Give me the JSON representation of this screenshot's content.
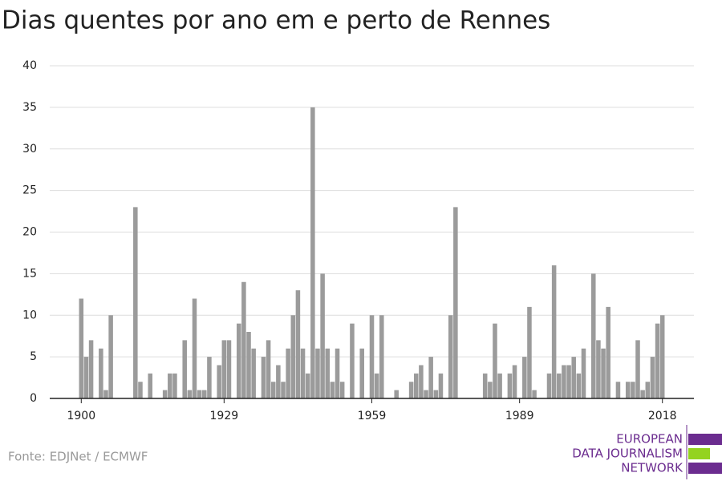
{
  "chart_data": {
    "type": "bar",
    "title": "Dias quentes por ano em e perto de Rennes",
    "x": [
      1900,
      1901,
      1902,
      1903,
      1904,
      1905,
      1906,
      1907,
      1908,
      1909,
      1910,
      1911,
      1912,
      1913,
      1914,
      1915,
      1916,
      1917,
      1918,
      1919,
      1920,
      1921,
      1922,
      1923,
      1924,
      1925,
      1926,
      1927,
      1928,
      1929,
      1930,
      1931,
      1932,
      1933,
      1934,
      1935,
      1936,
      1937,
      1938,
      1939,
      1940,
      1941,
      1942,
      1943,
      1944,
      1945,
      1946,
      1947,
      1948,
      1949,
      1950,
      1951,
      1952,
      1953,
      1954,
      1955,
      1956,
      1957,
      1958,
      1959,
      1960,
      1961,
      1962,
      1963,
      1964,
      1965,
      1966,
      1967,
      1968,
      1969,
      1970,
      1971,
      1972,
      1973,
      1974,
      1975,
      1976,
      1977,
      1978,
      1979,
      1980,
      1981,
      1982,
      1983,
      1984,
      1985,
      1986,
      1987,
      1988,
      1989,
      1990,
      1991,
      1992,
      1993,
      1994,
      1995,
      1996,
      1997,
      1998,
      1999,
      2000,
      2001,
      2002,
      2003,
      2004,
      2005,
      2006,
      2007,
      2008,
      2009,
      2010,
      2011,
      2012,
      2013,
      2014,
      2015,
      2016,
      2017,
      2018
    ],
    "values": [
      12,
      5,
      7,
      0,
      6,
      1,
      10,
      0,
      0,
      0,
      0,
      23,
      2,
      0,
      3,
      0,
      0,
      1,
      3,
      3,
      0,
      7,
      1,
      12,
      1,
      1,
      5,
      0,
      4,
      7,
      7,
      0,
      9,
      14,
      8,
      6,
      0,
      5,
      7,
      2,
      4,
      2,
      6,
      10,
      13,
      6,
      3,
      35,
      6,
      15,
      6,
      2,
      6,
      2,
      0,
      9,
      0,
      6,
      0,
      10,
      3,
      10,
      0,
      0,
      1,
      0,
      0,
      2,
      3,
      4,
      1,
      5,
      1,
      3,
      0,
      10,
      23,
      0,
      0,
      0,
      0,
      0,
      3,
      2,
      9,
      3,
      0,
      3,
      4,
      0,
      5,
      11,
      1,
      0,
      0,
      3,
      16,
      3,
      4,
      4,
      5,
      3,
      6,
      0,
      15,
      7,
      6,
      11,
      0,
      2,
      0,
      2,
      2,
      7,
      1,
      2,
      5,
      9,
      10
    ],
    "color": "#9b9b9b",
    "xlim": [
      1893.6,
      2024.4
    ],
    "xticks": [
      1900,
      1929,
      1959,
      1989,
      2018
    ],
    "ylim": [
      0,
      40
    ],
    "yticks": [
      0,
      5,
      10,
      15,
      20,
      25,
      30,
      35,
      40
    ],
    "grid": true,
    "source": "Fonte: EDJNet / ECMWF",
    "logo": [
      "EUROPEAN",
      "DATA JOURNALISM",
      "NETWORK"
    ]
  }
}
